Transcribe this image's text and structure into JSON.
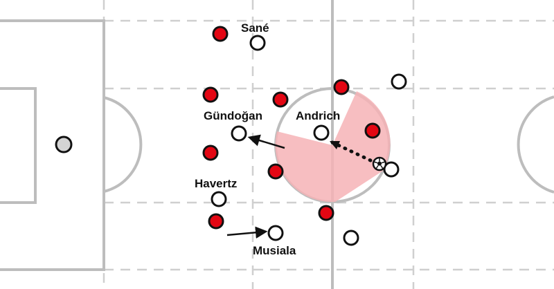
{
  "labels": {
    "sane": "Sané",
    "gundogan": "Gündoğan",
    "andrich": "Andrich",
    "havertz": "Havertz",
    "musiala": "Musiala"
  },
  "colors": {
    "pitch_line": "#bdbdbd",
    "dash_line": "#cfcfcf",
    "red_player": "#e30613",
    "white_player": "#ffffff",
    "neutral_player": "#d4d4d4",
    "outline": "#111111",
    "press_zone": "#f6b3b6"
  },
  "icons": {
    "ball": "soccer-ball-icon",
    "pass_arrow": "dotted-arrow-icon",
    "run_arrow": "arrow-icon"
  }
}
